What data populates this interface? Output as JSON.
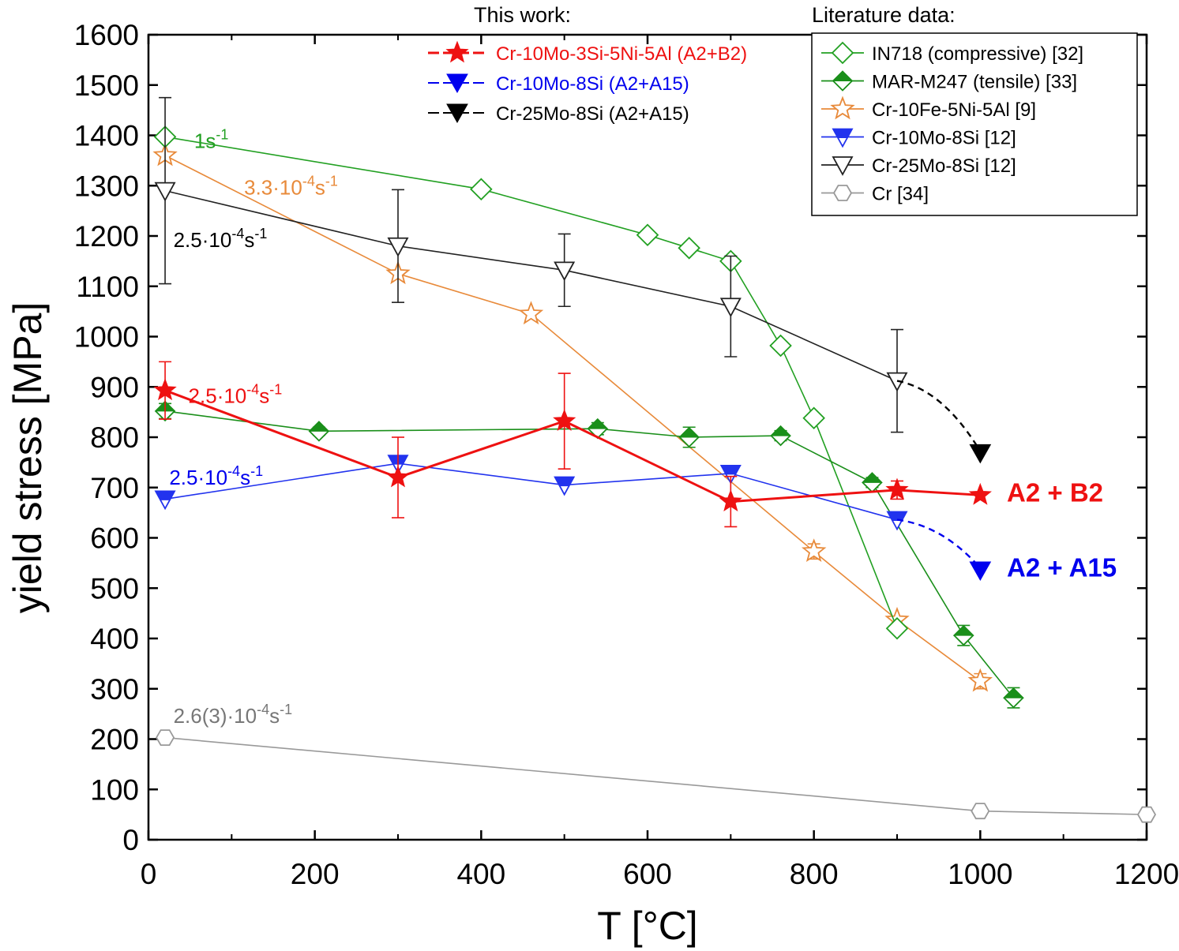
{
  "chart_data": {
    "type": "line",
    "xlabel": "T [°C]",
    "ylabel": "yield stress [MPa]",
    "xlim": [
      0,
      1200
    ],
    "ylim": [
      0,
      1600
    ],
    "xticks": [
      0,
      200,
      400,
      600,
      800,
      1000,
      1200
    ],
    "yticks": [
      0,
      100,
      200,
      300,
      400,
      500,
      600,
      700,
      800,
      900,
      1000,
      1100,
      1200,
      1300,
      1400,
      1500,
      1600
    ],
    "legend_this_work_title": "This work:",
    "legend_literature_title": "Literature data:",
    "series": [
      {
        "id": "cr-mo-si-ni-al",
        "name": "Cr-10Mo-3Si-5Ni-5Al (A2+B2)",
        "group": "this-work",
        "color": "#ee1111",
        "marker": "star-filled",
        "line_width": 3,
        "x": [
          20,
          300,
          500,
          700,
          900,
          1000
        ],
        "y": [
          893,
          720,
          832,
          672,
          695,
          685
        ],
        "err": [
          57,
          80,
          95,
          50,
          18,
          0
        ]
      },
      {
        "id": "cr10mo8si-this",
        "name": "Cr-10Mo-8Si (A2+A15)",
        "group": "this-work",
        "color": "#0000ee",
        "marker": "tri-down-filled",
        "line_width": 2,
        "x": [
          1000
        ],
        "y": [
          535
        ],
        "err": [
          0
        ],
        "connector": {
          "from": [
            900,
            636
          ],
          "to": [
            1000,
            540
          ]
        }
      },
      {
        "id": "cr25mo8si-this",
        "name": "Cr-25Mo-8Si (A2+A15)",
        "group": "this-work",
        "color": "#000000",
        "marker": "tri-down-filled",
        "line_width": 2,
        "x": [
          1000
        ],
        "y": [
          768
        ],
        "err": [
          0
        ],
        "connector": {
          "from": [
            900,
            912
          ],
          "to": [
            1000,
            772
          ]
        }
      },
      {
        "id": "in718",
        "name": "IN718 (compressive) [32]",
        "group": "literature",
        "color": "#22a022",
        "marker": "diamond-open",
        "line_width": 1.6,
        "x": [
          20,
          400,
          600,
          650,
          700,
          760,
          800,
          900
        ],
        "y": [
          1397,
          1293,
          1202,
          1176,
          1150,
          982,
          838,
          420
        ],
        "err": [
          0,
          0,
          0,
          0,
          0,
          0,
          0,
          0
        ]
      },
      {
        "id": "mar-m247",
        "name": "MAR-M247 (tensile) [33]",
        "group": "literature",
        "color": "#1a8f1a",
        "marker": "diamond-half",
        "line_width": 1.6,
        "x": [
          20,
          205,
          540,
          650,
          760,
          870,
          980,
          1040
        ],
        "y": [
          852,
          812,
          817,
          800,
          803,
          710,
          406,
          282
        ],
        "err": [
          15,
          8,
          12,
          20,
          10,
          10,
          20,
          20
        ]
      },
      {
        "id": "cr10fe5ni5al",
        "name": "Cr-10Fe-5Ni-5Al [9]",
        "group": "literature",
        "color": "#e88a3a",
        "marker": "star-open",
        "line_width": 1.6,
        "x": [
          20,
          300,
          460,
          800,
          900,
          1000
        ],
        "y": [
          1360,
          1125,
          1045,
          573,
          437,
          315
        ],
        "err": [
          0,
          0,
          0,
          15,
          0,
          15
        ]
      },
      {
        "id": "cr10mo8si-lit",
        "name": "Cr-10Mo-8Si [12]",
        "group": "literature",
        "color": "#2233ee",
        "marker": "tri-down-half",
        "line_width": 1.6,
        "x": [
          20,
          300,
          500,
          700,
          900
        ],
        "y": [
          677,
          748,
          705,
          728,
          636
        ],
        "err": [
          0,
          0,
          0,
          0,
          0
        ]
      },
      {
        "id": "cr25mo8si-lit",
        "name": "Cr-25Mo-8Si [12]",
        "group": "literature",
        "color": "#222222",
        "marker": "tri-down-open",
        "line_width": 1.6,
        "x": [
          20,
          300,
          500,
          700,
          900
        ],
        "y": [
          1290,
          1180,
          1132,
          1060,
          912
        ],
        "err": [
          185,
          112,
          72,
          100,
          102
        ]
      },
      {
        "id": "cr-pure",
        "name": "Cr [34]",
        "group": "literature",
        "color": "#999999",
        "marker": "hexagon-open",
        "line_width": 1.6,
        "x": [
          20,
          1000,
          1200
        ],
        "y": [
          203,
          57,
          50
        ],
        "err": [
          0,
          0,
          0
        ]
      }
    ],
    "rate_annotations": [
      {
        "text": "1s-1",
        "base": "1s",
        "exp": "-1",
        "tail": "",
        "color": "#22a022",
        "x": 55,
        "y": 1375
      },
      {
        "text": "3.3·10-4s-1",
        "base": "3.3·10",
        "exp": "-4",
        "tail": "s",
        "exp2": "-1",
        "color": "#e88a3a",
        "x": 115,
        "y": 1282
      },
      {
        "text": "2.5·10-4s-1",
        "base": "2.5·10",
        "exp": "-4",
        "tail": "s",
        "exp2": "-1",
        "color": "#000000",
        "x": 30,
        "y": 1178
      },
      {
        "text": "2.5·10-4s-1",
        "base": "2.5·10",
        "exp": "-4",
        "tail": "s",
        "exp2": "-1",
        "color": "#ee1111",
        "x": 48,
        "y": 868
      },
      {
        "text": "2.5·10-4s-1",
        "base": "2.5·10",
        "exp": "-4",
        "tail": "s",
        "exp2": "-1",
        "color": "#0000ee",
        "x": 25,
        "y": 706
      },
      {
        "text": "2.6(3)·10-4s-1",
        "base": "2.6(3)·10",
        "exp": "-4",
        "tail": "s",
        "exp2": "-1",
        "color": "#777777",
        "x": 30,
        "y": 232
      }
    ],
    "phase_labels": [
      {
        "text": "A2 + B2",
        "color": "#ee1111",
        "x": 1032,
        "y": 672
      },
      {
        "text": "A2 + A15",
        "color": "#0000ee",
        "x": 1032,
        "y": 523
      }
    ]
  }
}
